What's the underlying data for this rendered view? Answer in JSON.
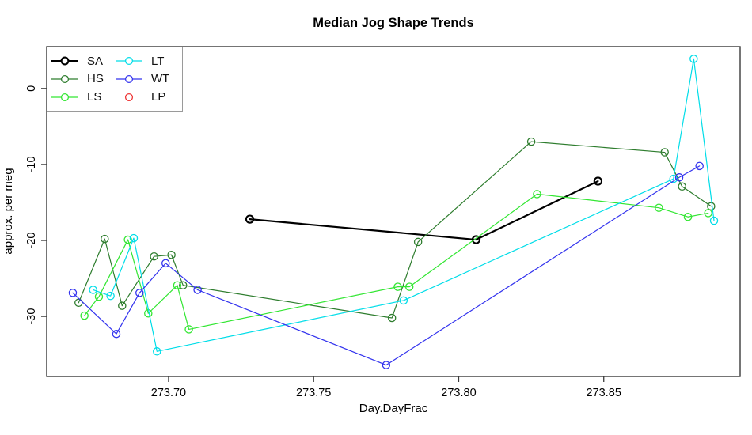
{
  "title": "Median Jog Shape Trends",
  "axes": {
    "x_label": "Day.DayFrac",
    "y_label": "approx. per meg",
    "x_ticks": [
      "273.70",
      "273.75",
      "273.80",
      "273.85"
    ],
    "y_ticks": [
      "0",
      "-10",
      "-20",
      "-30"
    ]
  },
  "legend": {
    "position": "top-left",
    "items": [
      {
        "label": "SA",
        "has_line": true
      },
      {
        "label": "HS",
        "has_line": true
      },
      {
        "label": "LS",
        "has_line": true
      },
      {
        "label": "LT",
        "has_line": true
      },
      {
        "label": "WT",
        "has_line": true
      },
      {
        "label": "LP",
        "has_line": false
      }
    ]
  },
  "colors": {
    "SA": "#000000",
    "HS": "#2e7d2e",
    "LS": "#33e633",
    "LT": "#00dde8",
    "WT": "#3333ee",
    "LP": "#ee3333",
    "axis": "#3a3a3a",
    "legend_border": "#9a9a9a"
  },
  "chart_data": {
    "type": "line",
    "title": "Median Jog Shape Trends",
    "xlabel": "Day.DayFrac",
    "ylabel": "approx. per meg",
    "xlim": [
      273.658,
      273.897
    ],
    "ylim": [
      -37.9,
      5.5
    ],
    "x_tick_values": [
      273.7,
      273.75,
      273.8,
      273.85
    ],
    "y_tick_values": [
      0,
      -10,
      -20,
      -30
    ],
    "grid": false,
    "marker": "open-circle",
    "legend_position": "top-left",
    "series": [
      {
        "name": "SA",
        "color": "#000000",
        "line_width": 2.2,
        "x": [
          273.728,
          273.806,
          273.848
        ],
        "y": [
          -17.2,
          -19.9,
          -12.2
        ]
      },
      {
        "name": "HS",
        "color": "#2e7d2e",
        "line_width": 1.2,
        "x": [
          273.669,
          273.678,
          273.684,
          273.695,
          273.701,
          273.705,
          273.777,
          273.786,
          273.825,
          273.871,
          273.877,
          273.887
        ],
        "y": [
          -28.2,
          -19.8,
          -28.6,
          -22.1,
          -21.9,
          -25.9,
          -30.2,
          -20.2,
          -7.0,
          -8.4,
          -12.9,
          -15.5
        ]
      },
      {
        "name": "LS",
        "color": "#33e633",
        "line_width": 1.2,
        "x": [
          273.671,
          273.676,
          273.686,
          273.693,
          273.703,
          273.707,
          273.779,
          273.783,
          273.827,
          273.869,
          273.879,
          273.886
        ],
        "y": [
          -29.9,
          -27.4,
          -19.9,
          -29.6,
          -25.9,
          -31.7,
          -26.1,
          -26.1,
          -13.9,
          -15.7,
          -16.9,
          -16.4
        ]
      },
      {
        "name": "LT",
        "color": "#00dde8",
        "line_width": 1.2,
        "x": [
          273.674,
          273.68,
          273.688,
          273.696,
          273.781,
          273.874,
          273.881,
          273.888
        ],
        "y": [
          -26.5,
          -27.3,
          -19.7,
          -34.6,
          -27.9,
          -11.9,
          3.9,
          -17.4
        ]
      },
      {
        "name": "WT",
        "color": "#3333ee",
        "line_width": 1.2,
        "x": [
          273.667,
          273.682,
          273.69,
          273.699,
          273.71,
          273.775,
          273.876,
          273.883
        ],
        "y": [
          -26.9,
          -32.3,
          -26.9,
          -23.0,
          -26.5,
          -36.4,
          -11.7,
          -10.2
        ]
      },
      {
        "name": "LP",
        "color": "#ee3333",
        "line_width": 1.2,
        "x": [],
        "y": []
      }
    ]
  }
}
